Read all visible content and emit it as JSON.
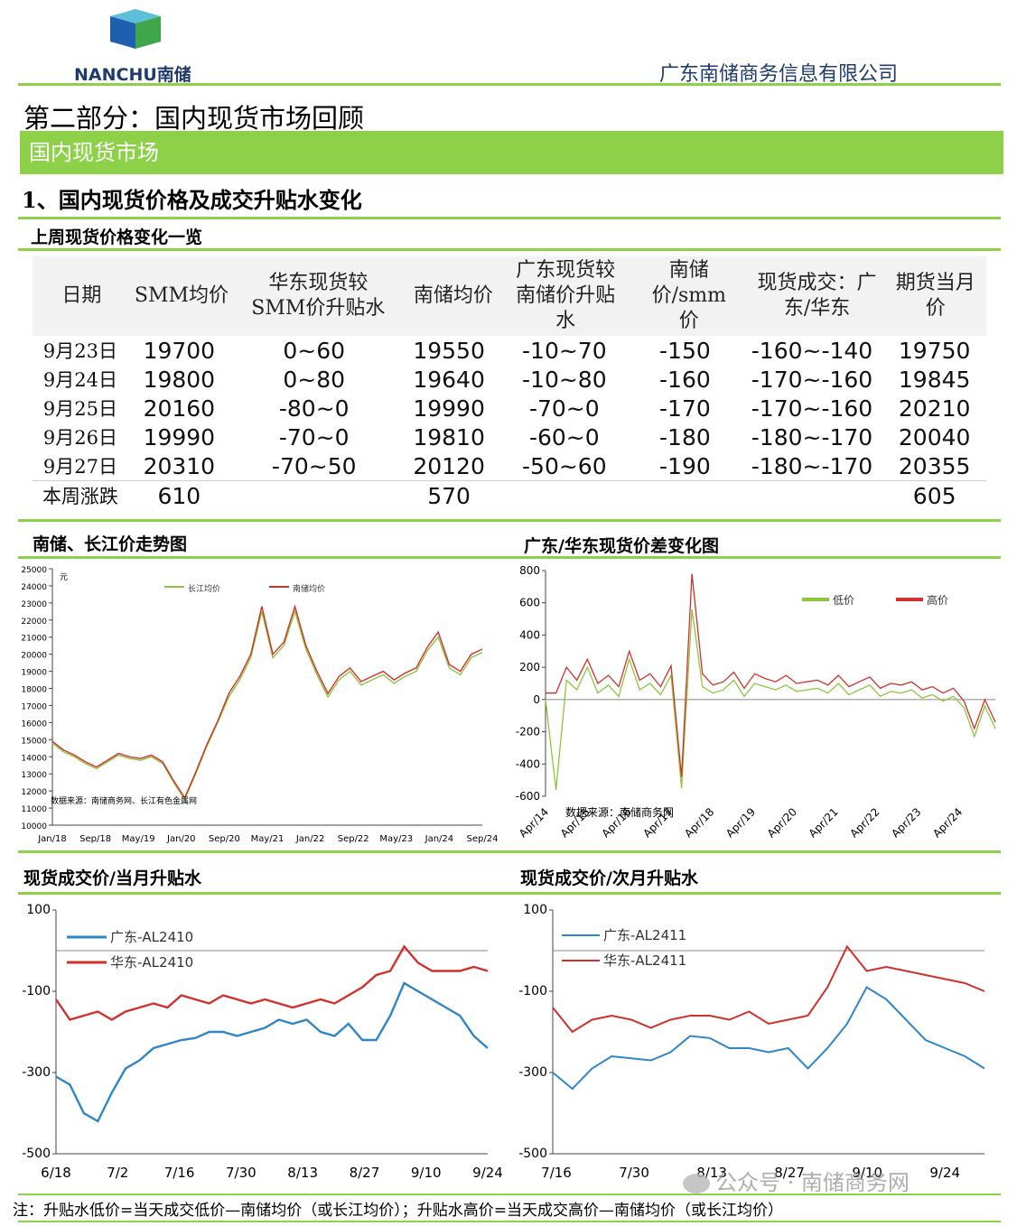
{
  "header": {
    "logo_text": "NANCHU",
    "logo_cn": "南储",
    "company": "广东南储商务信息有限公司"
  },
  "part_title": "第二部分：国内现货市场回顾",
  "section_bar": "国内现货市场",
  "subsection_title": "1、国内现货价格及成交升贴水变化",
  "table_title": "上周现货价格变化一览",
  "table": {
    "headers": [
      "日期",
      "SMM均价",
      "华东现货较SMM价升贴水",
      "南储均价",
      "广东现货较南储价升贴水",
      "南储价/smm价",
      "现货成交：广东/华东",
      "期货当月价"
    ],
    "rows": [
      [
        "9月23日",
        "19700",
        "0~60",
        "19550",
        "-10~70",
        "-150",
        "-160~-140",
        "19750"
      ],
      [
        "9月24日",
        "19800",
        "0~80",
        "19640",
        "-10~80",
        "-160",
        "-170~-160",
        "19845"
      ],
      [
        "9月25日",
        "20160",
        "-80~0",
        "19990",
        "-70~0",
        "-170",
        "-170~-160",
        "20210"
      ],
      [
        "9月26日",
        "19990",
        "-70~0",
        "19810",
        "-60~0",
        "-180",
        "-180~-170",
        "20040"
      ],
      [
        "9月27日",
        "20310",
        "-70~50",
        "20120",
        "-50~60",
        "-190",
        "-180~-170",
        "20355"
      ]
    ],
    "summary": [
      "本周涨跌",
      "610",
      "",
      "570",
      "",
      "",
      "",
      "605"
    ]
  },
  "colors": {
    "green": "#8cd147",
    "red": "#c0392b",
    "blue": "#2e86c8",
    "navy": "#1f3b6e"
  },
  "chart_data": [
    {
      "type": "line",
      "title": "南储、长江价走势图",
      "ylabel": "元",
      "ylim": [
        10000,
        25000
      ],
      "yticks": [
        10000,
        11000,
        12000,
        13000,
        14000,
        15000,
        16000,
        17000,
        18000,
        19000,
        20000,
        21000,
        22000,
        23000,
        24000,
        25000
      ],
      "xticks": [
        "Jan/18",
        "Sep/18",
        "May/19",
        "Jan/20",
        "Sep/20",
        "May/21",
        "Jan/22",
        "Sep/22",
        "May/23",
        "Jan/24",
        "Sep/24"
      ],
      "source_note": "数据来源：南储商务网、长江有色金属网",
      "series": [
        {
          "name": "长江均价",
          "color": "#8cc63f",
          "values": [
            14800,
            14300,
            14000,
            13600,
            13300,
            13700,
            14100,
            13900,
            13800,
            14000,
            13600,
            12500,
            11500,
            13000,
            14600,
            16000,
            17500,
            18500,
            19800,
            22500,
            19800,
            20500,
            22500,
            20300,
            18800,
            17500,
            18500,
            19000,
            18200,
            18500,
            18800,
            18300,
            18700,
            19000,
            20200,
            21000,
            19200,
            18800,
            19800,
            20100
          ]
        },
        {
          "name": "南储均价",
          "color": "#d0312d",
          "values": [
            14900,
            14400,
            14100,
            13700,
            13400,
            13800,
            14200,
            14000,
            13900,
            14100,
            13700,
            12600,
            11600,
            13100,
            14700,
            16100,
            17700,
            18700,
            20000,
            22800,
            20000,
            20700,
            22800,
            20500,
            19000,
            17700,
            18700,
            19200,
            18400,
            18700,
            19000,
            18500,
            18900,
            19200,
            20400,
            21300,
            19400,
            19000,
            20000,
            20300
          ]
        }
      ]
    },
    {
      "type": "line",
      "title": "广东/华东现货价差变化图",
      "ylim": [
        -600,
        800
      ],
      "yticks": [
        -600,
        -400,
        -200,
        0,
        200,
        400,
        600,
        800
      ],
      "xticks": [
        "Apr/14",
        "Apr/15",
        "Apr/16",
        "Apr/17",
        "Apr/18",
        "Apr/19",
        "Apr/20",
        "Apr/21",
        "Apr/22",
        "Apr/23",
        "Apr/24"
      ],
      "source_note": "数据来源：南储商务网",
      "series": [
        {
          "name": "低价",
          "color": "#8cc63f",
          "values": [
            0,
            -560,
            120,
            60,
            200,
            40,
            90,
            20,
            250,
            60,
            100,
            30,
            150,
            -550,
            560,
            80,
            40,
            60,
            120,
            20,
            100,
            80,
            60,
            90,
            50,
            60,
            70,
            40,
            100,
            30,
            60,
            90,
            20,
            50,
            40,
            60,
            10,
            30,
            -10,
            20,
            -50,
            -230,
            -40,
            -180
          ]
        },
        {
          "name": "高价",
          "color": "#d0312d",
          "values": [
            40,
            40,
            200,
            120,
            250,
            100,
            150,
            80,
            300,
            120,
            160,
            80,
            210,
            -480,
            780,
            160,
            90,
            110,
            170,
            70,
            160,
            130,
            110,
            150,
            100,
            110,
            120,
            90,
            150,
            80,
            110,
            140,
            70,
            100,
            90,
            110,
            60,
            80,
            40,
            70,
            -10,
            -180,
            0,
            -140
          ]
        }
      ]
    },
    {
      "type": "line",
      "title": "现货成交价/当月升贴水",
      "ylim": [
        -500,
        100
      ],
      "yticks": [
        100,
        -100,
        -300,
        -500
      ],
      "xticks": [
        "6/18",
        "7/2",
        "7/16",
        "7/30",
        "8/13",
        "8/27",
        "9/10",
        "9/24"
      ],
      "series": [
        {
          "name": "广东-AL2410",
          "color": "#2e86c8",
          "values": [
            -310,
            -330,
            -400,
            -420,
            -350,
            -290,
            -270,
            -240,
            -230,
            -220,
            -215,
            -200,
            -200,
            -210,
            -200,
            -190,
            -170,
            -180,
            -170,
            -200,
            -210,
            -180,
            -220,
            -220,
            -160,
            -80,
            -100,
            -120,
            -140,
            -160,
            -210,
            -240
          ]
        },
        {
          "name": "华东-AL2410",
          "color": "#d0312d",
          "values": [
            -120,
            -170,
            -160,
            -150,
            -170,
            -150,
            -140,
            -130,
            -140,
            -110,
            -120,
            -130,
            -110,
            -120,
            -130,
            -120,
            -130,
            -140,
            -130,
            -120,
            -130,
            -110,
            -90,
            -60,
            -50,
            10,
            -30,
            -50,
            -50,
            -50,
            -40,
            -50
          ]
        }
      ]
    },
    {
      "type": "line",
      "title": "现货成交价/次月升贴水",
      "ylim": [
        -500,
        100
      ],
      "yticks": [
        100,
        -100,
        -300,
        -500
      ],
      "xticks": [
        "7/16",
        "7/30",
        "8/13",
        "8/27",
        "9/10",
        "9/24"
      ],
      "series": [
        {
          "name": "广东-AL2411",
          "color": "#2e86c8",
          "values": [
            -300,
            -340,
            -290,
            -260,
            -265,
            -270,
            -250,
            -210,
            -215,
            -240,
            -240,
            -250,
            -240,
            -290,
            -240,
            -180,
            -90,
            -120,
            -170,
            -220,
            -240,
            -260,
            -290
          ]
        },
        {
          "name": "华东-AL2411",
          "color": "#d0312d",
          "values": [
            -140,
            -200,
            -170,
            -160,
            -170,
            -190,
            -170,
            -160,
            -160,
            -170,
            -150,
            -180,
            -170,
            -160,
            -90,
            10,
            -50,
            -40,
            -50,
            -60,
            -70,
            -80,
            -100
          ]
        }
      ]
    }
  ],
  "watermark": "公众号 · 南储商务网",
  "footnote": "注：升贴水低价=当天成交低价—南储均价（或长江均价）；升贴水高价=当天成交高价—南储均价（或长江均价）"
}
